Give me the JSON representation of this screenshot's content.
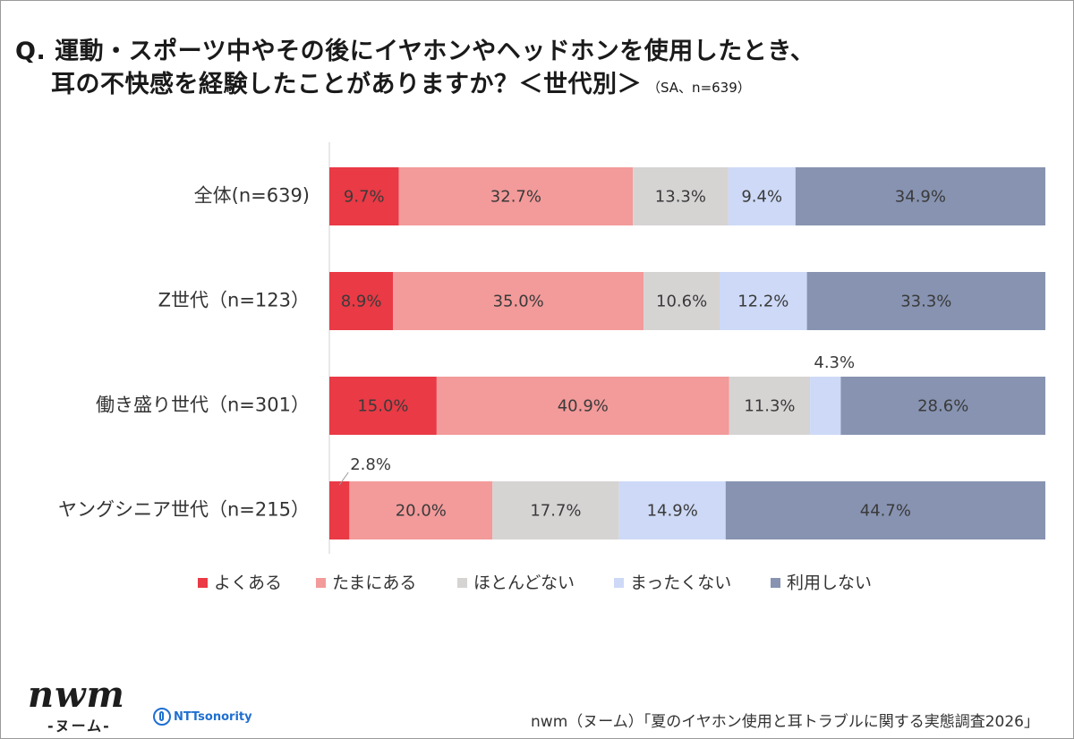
{
  "title": {
    "line1": "Q. 運動・スポーツ中やその後にイヤホンやヘッドホンを使用したとき、",
    "line2": "耳の不快感を経験したことがありますか？＜世代別＞",
    "suffix": "（SA、n=639）"
  },
  "chart_data": {
    "type": "bar",
    "orientation": "horizontal",
    "stacked": "100%",
    "categories": [
      "全体(n=639)",
      "Z世代（n=123）",
      "働き盛り世代（n=301）",
      "ヤングシニア世代（n=215）"
    ],
    "series": [
      {
        "name": "よくある",
        "color": "#e93a45",
        "values": [
          9.7,
          8.9,
          15.0,
          2.8
        ],
        "labels": [
          "9.7%",
          "8.9%",
          "15.0%",
          "2.8%"
        ]
      },
      {
        "name": "たまにある",
        "color": "#f39a9a",
        "values": [
          32.7,
          35.0,
          40.9,
          20.0
        ],
        "labels": [
          "32.7%",
          "35.0%",
          "40.9%",
          "20.0%"
        ]
      },
      {
        "name": "ほとんどない",
        "color": "#d6d3d3",
        "values": [
          13.3,
          10.6,
          11.3,
          17.7
        ],
        "labels": [
          "13.3%",
          "10.6%",
          "11.3%",
          "17.7%"
        ]
      },
      {
        "name": "まったくない",
        "color": "#cdd9f6",
        "values": [
          9.4,
          12.2,
          4.3,
          14.9
        ],
        "labels": [
          "9.4%",
          "12.2%",
          "4.3%",
          "14.9%"
        ]
      },
      {
        "name": "利用しない",
        "color": "#8793b1",
        "values": [
          34.9,
          33.3,
          28.6,
          44.7
        ],
        "labels": [
          "34.9%",
          "33.3%",
          "28.6%",
          "44.7%"
        ]
      }
    ],
    "xlim": [
      0,
      100
    ],
    "legend_position": "bottom",
    "grid": false
  },
  "branding": {
    "logo_text": "nwm",
    "logo_kana": "-ヌーム-",
    "partner": "NTTsonority"
  },
  "footer": "nwm（ヌーム）「夏のイヤホン使用と耳トラブルに関する実態調査2026」"
}
